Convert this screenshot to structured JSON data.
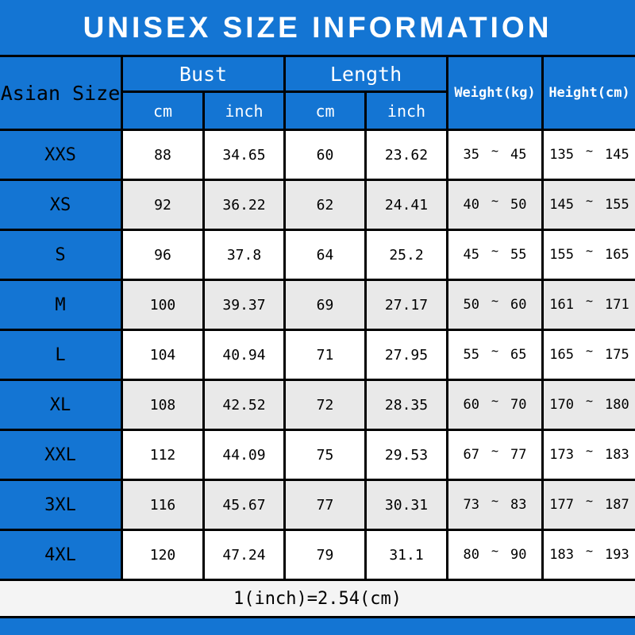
{
  "title": "UNISEX SIZE INFORMATION",
  "header": {
    "corner": "Asian Size",
    "bust": "Bust",
    "length": "Length",
    "weight": "Weight(kg)",
    "height": "Height(cm)",
    "cm": "cm",
    "inch": "inch"
  },
  "tilde": "~",
  "rows": [
    {
      "size": "XXS",
      "bust_cm": "88",
      "bust_in": "34.65",
      "len_cm": "60",
      "len_in": "23.62",
      "w_min": "35",
      "w_max": "45",
      "h_min": "135",
      "h_max": "145"
    },
    {
      "size": "XS",
      "bust_cm": "92",
      "bust_in": "36.22",
      "len_cm": "62",
      "len_in": "24.41",
      "w_min": "40",
      "w_max": "50",
      "h_min": "145",
      "h_max": "155"
    },
    {
      "size": "S",
      "bust_cm": "96",
      "bust_in": "37.8",
      "len_cm": "64",
      "len_in": "25.2",
      "w_min": "45",
      "w_max": "55",
      "h_min": "155",
      "h_max": "165"
    },
    {
      "size": "M",
      "bust_cm": "100",
      "bust_in": "39.37",
      "len_cm": "69",
      "len_in": "27.17",
      "w_min": "50",
      "w_max": "60",
      "h_min": "161",
      "h_max": "171"
    },
    {
      "size": "L",
      "bust_cm": "104",
      "bust_in": "40.94",
      "len_cm": "71",
      "len_in": "27.95",
      "w_min": "55",
      "w_max": "65",
      "h_min": "165",
      "h_max": "175"
    },
    {
      "size": "XL",
      "bust_cm": "108",
      "bust_in": "42.52",
      "len_cm": "72",
      "len_in": "28.35",
      "w_min": "60",
      "w_max": "70",
      "h_min": "170",
      "h_max": "180"
    },
    {
      "size": "XXL",
      "bust_cm": "112",
      "bust_in": "44.09",
      "len_cm": "75",
      "len_in": "29.53",
      "w_min": "67",
      "w_max": "77",
      "h_min": "173",
      "h_max": "183"
    },
    {
      "size": "3XL",
      "bust_cm": "116",
      "bust_in": "45.67",
      "len_cm": "77",
      "len_in": "30.31",
      "w_min": "73",
      "w_max": "83",
      "h_min": "177",
      "h_max": "187"
    },
    {
      "size": "4XL",
      "bust_cm": "120",
      "bust_in": "47.24",
      "len_cm": "79",
      "len_in": "31.1",
      "w_min": "80",
      "w_max": "90",
      "h_min": "183",
      "h_max": "193"
    }
  ],
  "footer": "1(inch)=2.54(cm)",
  "colors": {
    "blue": "#1475d3",
    "row": "#ffffff",
    "row_alt": "#e9e9e9",
    "line": "#000000"
  },
  "chart_data": {
    "type": "table",
    "title": "UNISEX SIZE INFORMATION",
    "columns": [
      "Asian Size",
      "Bust cm",
      "Bust inch",
      "Length cm",
      "Length inch",
      "Weight(kg)",
      "Height(cm)"
    ],
    "rows": [
      [
        "XXS",
        "88",
        "34.65",
        "60",
        "23.62",
        "35~45",
        "135~145"
      ],
      [
        "XS",
        "92",
        "36.22",
        "62",
        "24.41",
        "40~50",
        "145~155"
      ],
      [
        "S",
        "96",
        "37.8",
        "64",
        "25.2",
        "45~55",
        "155~165"
      ],
      [
        "M",
        "100",
        "39.37",
        "69",
        "27.17",
        "50~60",
        "161~171"
      ],
      [
        "L",
        "104",
        "40.94",
        "71",
        "27.95",
        "55~65",
        "165~175"
      ],
      [
        "XL",
        "108",
        "42.52",
        "72",
        "28.35",
        "60~70",
        "170~180"
      ],
      [
        "XXL",
        "112",
        "44.09",
        "75",
        "29.53",
        "67~77",
        "173~183"
      ],
      [
        "3XL",
        "116",
        "45.67",
        "77",
        "30.31",
        "73~83",
        "177~187"
      ],
      [
        "4XL",
        "120",
        "47.24",
        "79",
        "31.1",
        "80~90",
        "183~193"
      ]
    ],
    "note": "1(inch)=2.54(cm)"
  }
}
